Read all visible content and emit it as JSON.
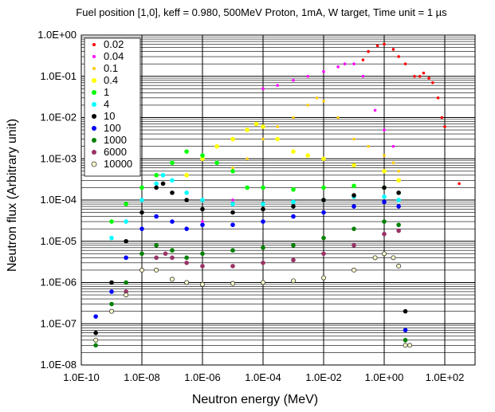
{
  "chart_data": {
    "type": "scatter",
    "title": "Fuel position [1,0], keff = 0.980, 500MeV Proton, 1mA, W target, Time unit = 1 µs",
    "xlabel": "Neutron energy (MeV)",
    "ylabel": "Neutron flux (Arbitrary unit)",
    "x_scale": "log",
    "y_scale": "log",
    "xlim": [
      1e-10,
      1000
    ],
    "ylim": [
      1e-08,
      1
    ],
    "x_ticks": [
      1e-10,
      1e-08,
      1e-06,
      0.0001,
      0.01,
      1,
      100
    ],
    "x_tick_labels": [
      "1.0E-10",
      "1.0E-08",
      "1.0E-06",
      "1.0E-04",
      "1.0E-02",
      "1.0E+00",
      "1.0E+02"
    ],
    "y_ticks": [
      1e-08,
      1e-07,
      1e-06,
      1e-05,
      0.0001,
      0.001,
      0.01,
      0.1,
      1
    ],
    "y_tick_labels": [
      "1.0E-08",
      "1.0E-07",
      "1.0E-06",
      "1.0E-05",
      "1.0E-04",
      "1.0E-03",
      "1.0E-02",
      "1.0E-01",
      "1.0E+00"
    ],
    "grid": true,
    "legend_position": "top-left",
    "series": [
      {
        "name": "0.02",
        "color": "#ff0000",
        "marker": "dot-small",
        "points": [
          [
            0.3,
            0.4
          ],
          [
            1,
            0.6
          ],
          [
            3,
            0.3
          ],
          [
            10,
            0.1
          ],
          [
            20,
            0.12
          ],
          [
            40,
            0.07
          ],
          [
            60,
            0.03
          ],
          [
            80,
            0.01
          ],
          [
            100,
            0.006
          ],
          [
            300,
            0.00025
          ],
          [
            0.2,
            0.25
          ],
          [
            0.6,
            0.55
          ],
          [
            2,
            0.45
          ],
          [
            5,
            0.2
          ],
          [
            15,
            0.1
          ],
          [
            30,
            0.09
          ]
        ]
      },
      {
        "name": "0.04",
        "color": "#ff00ff",
        "marker": "dot-small",
        "points": [
          [
            0.0003,
            0.06
          ],
          [
            0.001,
            0.08
          ],
          [
            0.003,
            0.1
          ],
          [
            0.01,
            0.13
          ],
          [
            0.03,
            0.17
          ],
          [
            0.1,
            0.2
          ],
          [
            0.2,
            0.1
          ],
          [
            0.5,
            0.015
          ],
          [
            1,
            0.005
          ],
          [
            2,
            0.002
          ],
          [
            1e-06,
            3e-05
          ],
          [
            1e-05,
            0.0001
          ],
          [
            0.05,
            0.2
          ],
          [
            0.0001,
            0.05
          ]
        ]
      },
      {
        "name": "0.1",
        "color": "#ffcc00",
        "marker": "dot-small",
        "points": [
          [
            1e-06,
            0.0001
          ],
          [
            1e-05,
            0.0006
          ],
          [
            3e-05,
            0.001
          ],
          [
            0.0001,
            0.003
          ],
          [
            0.0003,
            0.006
          ],
          [
            0.001,
            0.01
          ],
          [
            0.003,
            0.02
          ],
          [
            0.006,
            0.03
          ],
          [
            0.01,
            0.025
          ],
          [
            0.03,
            0.01
          ],
          [
            0.1,
            0.003
          ],
          [
            0.3,
            0.002
          ],
          [
            1,
            0.0012
          ],
          [
            2,
            0.0008
          ],
          [
            3,
            0.0005
          ]
        ]
      },
      {
        "name": "0.4",
        "color": "#ffff00",
        "marker": "dot",
        "points": [
          [
            3e-07,
            0.0004
          ],
          [
            1e-06,
            0.001
          ],
          [
            3e-06,
            0.002
          ],
          [
            1e-05,
            0.003
          ],
          [
            3e-05,
            0.005
          ],
          [
            6e-05,
            0.007
          ],
          [
            0.0001,
            0.006
          ],
          [
            0.0003,
            0.003
          ],
          [
            0.001,
            0.0015
          ],
          [
            0.003,
            0.0012
          ],
          [
            0.01,
            0.001
          ],
          [
            0.1,
            0.0007
          ],
          [
            1,
            0.0005
          ],
          [
            3,
            0.0003
          ]
        ]
      },
      {
        "name": "1",
        "color": "#00ff00",
        "marker": "dot",
        "points": [
          [
            1e-09,
            3e-05
          ],
          [
            3e-09,
            8e-05
          ],
          [
            1e-08,
            0.0002
          ],
          [
            3e-08,
            0.0004
          ],
          [
            1e-07,
            0.0008
          ],
          [
            3e-07,
            0.0015
          ],
          [
            1e-06,
            0.0012
          ],
          [
            3e-06,
            0.0008
          ],
          [
            1e-05,
            0.0005
          ],
          [
            3e-05,
            0.0002
          ],
          [
            0.0001,
            0.0002
          ],
          [
            0.001,
            0.00018
          ],
          [
            0.01,
            0.0002
          ],
          [
            0.1,
            0.00022
          ],
          [
            1,
            0.0002
          ],
          [
            3,
            0.00015
          ]
        ]
      },
      {
        "name": "4",
        "color": "#00ffff",
        "marker": "dot",
        "points": [
          [
            1e-09,
            1.2e-05
          ],
          [
            3e-09,
            3e-05
          ],
          [
            1e-08,
            0.0001
          ],
          [
            3e-08,
            0.00025
          ],
          [
            5e-08,
            0.0004
          ],
          [
            1e-07,
            0.0003
          ],
          [
            3e-07,
            0.00015
          ],
          [
            1e-06,
            0.0001
          ],
          [
            1e-05,
            8e-05
          ],
          [
            0.0001,
            8e-05
          ],
          [
            0.001,
            9e-05
          ],
          [
            0.01,
            0.0001
          ],
          [
            0.1,
            0.00012
          ],
          [
            1,
            0.00012
          ],
          [
            3,
            0.0001
          ]
        ]
      },
      {
        "name": "10",
        "color": "#000000",
        "marker": "dot",
        "points": [
          [
            3e-10,
            6e-08
          ],
          [
            1e-09,
            1e-06
          ],
          [
            3e-09,
            1e-05
          ],
          [
            1e-08,
            5e-05
          ],
          [
            3e-08,
            0.0002
          ],
          [
            5e-08,
            0.00025
          ],
          [
            1e-07,
            0.00015
          ],
          [
            3e-07,
            0.0001
          ],
          [
            1e-06,
            6e-05
          ],
          [
            1e-05,
            5e-05
          ],
          [
            0.0001,
            6e-05
          ],
          [
            0.001,
            7e-05
          ],
          [
            0.01,
            0.0001
          ],
          [
            0.1,
            0.00013
          ],
          [
            1,
            0.0002
          ],
          [
            3,
            0.00015
          ],
          [
            5,
            2e-07
          ]
        ]
      },
      {
        "name": "100",
        "color": "#0000ff",
        "marker": "dot",
        "points": [
          [
            3e-10,
            1.5e-07
          ],
          [
            1e-09,
            6e-07
          ],
          [
            3e-09,
            4e-06
          ],
          [
            1e-08,
            2e-05
          ],
          [
            3e-08,
            4e-05
          ],
          [
            1e-07,
            3e-05
          ],
          [
            3e-07,
            2e-05
          ],
          [
            1e-06,
            2.5e-05
          ],
          [
            1e-05,
            2.5e-05
          ],
          [
            0.0001,
            3e-05
          ],
          [
            0.001,
            4e-05
          ],
          [
            0.01,
            5e-05
          ],
          [
            0.1,
            7e-05
          ],
          [
            1,
            9e-05
          ],
          [
            3,
            7e-05
          ],
          [
            5,
            7e-08
          ]
        ]
      },
      {
        "name": "1000",
        "color": "#008000",
        "marker": "dot",
        "points": [
          [
            3e-10,
            3e-08
          ],
          [
            1e-09,
            3e-07
          ],
          [
            3e-09,
            1e-06
          ],
          [
            1e-08,
            5e-06
          ],
          [
            3e-08,
            8e-06
          ],
          [
            1e-07,
            6e-06
          ],
          [
            3e-07,
            4e-06
          ],
          [
            1e-06,
            5e-06
          ],
          [
            1e-05,
            6e-06
          ],
          [
            0.0001,
            7e-06
          ],
          [
            0.001,
            8e-06
          ],
          [
            0.01,
            1.2e-05
          ],
          [
            0.1,
            2e-05
          ],
          [
            1,
            3e-05
          ],
          [
            3,
            2.5e-05
          ],
          [
            5,
            4e-08
          ]
        ]
      },
      {
        "name": "6000",
        "color": "#993366",
        "marker": "dot",
        "points": [
          [
            1e-09,
            2e-07
          ],
          [
            3e-09,
            6e-07
          ],
          [
            1e-08,
            2e-06
          ],
          [
            3e-08,
            4e-06
          ],
          [
            6e-08,
            5e-06
          ],
          [
            1e-07,
            4e-06
          ],
          [
            3e-07,
            3e-06
          ],
          [
            1e-06,
            2.5e-06
          ],
          [
            1e-05,
            2.5e-06
          ],
          [
            0.0001,
            3e-06
          ],
          [
            0.001,
            3.5e-06
          ],
          [
            0.01,
            5e-06
          ],
          [
            0.1,
            8e-06
          ],
          [
            1,
            1.5e-05
          ],
          [
            3,
            1.8e-05
          ]
        ]
      },
      {
        "name": "10000",
        "color": "#ffffcc",
        "marker": "circle",
        "points": [
          [
            3e-10,
            4e-08
          ],
          [
            1e-09,
            2e-07
          ],
          [
            3e-09,
            5e-07
          ],
          [
            1e-08,
            2e-06
          ],
          [
            3e-08,
            2e-06
          ],
          [
            1e-07,
            1.2e-06
          ],
          [
            3e-07,
            1e-06
          ],
          [
            1e-06,
            9e-07
          ],
          [
            1e-05,
            9.5e-07
          ],
          [
            0.0001,
            1e-06
          ],
          [
            0.001,
            1.1e-06
          ],
          [
            0.01,
            1.3e-06
          ],
          [
            0.1,
            2e-06
          ],
          [
            0.5,
            4e-06
          ],
          [
            1,
            5e-06
          ],
          [
            2,
            4e-06
          ],
          [
            3,
            2.5e-06
          ],
          [
            5,
            3e-08
          ],
          [
            7,
            3e-08
          ]
        ]
      }
    ]
  }
}
